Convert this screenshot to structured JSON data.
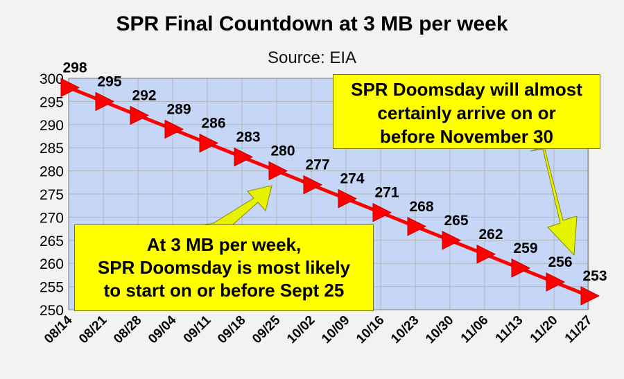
{
  "chart_data": {
    "type": "line",
    "title": "SPR Final Countdown at 3 MB per week",
    "subtitle": "Source: EIA",
    "categories": [
      "08/14",
      "08/21",
      "08/28",
      "09/04",
      "09/11",
      "09/18",
      "09/25",
      "10/02",
      "10/09",
      "10/16",
      "10/23",
      "10/30",
      "11/06",
      "11/13",
      "11/20",
      "11/27"
    ],
    "series": [
      {
        "values": [
          298,
          295,
          292,
          289,
          286,
          283,
          280,
          277,
          274,
          271,
          268,
          265,
          262,
          259,
          256,
          253
        ]
      }
    ],
    "data_labels": [
      "298",
      "295",
      "292",
      "289",
      "286",
      "283",
      "280",
      "277",
      "274",
      "271",
      "268",
      "265",
      "262",
      "259",
      "256",
      "253"
    ],
    "ylim": [
      250,
      300
    ],
    "yticks": [
      "250",
      "255",
      "260",
      "265",
      "270",
      "275",
      "280",
      "285",
      "290",
      "295",
      "300"
    ],
    "grid": true,
    "colors": {
      "line": "#ff0000",
      "marker": "#ff0000",
      "plot_background": "#c5d6f7",
      "callout": "#ffff00",
      "arrow": "#e6f200"
    },
    "annotations": [
      {
        "id": "right",
        "lines": [
          "SPR Doomsday will almost",
          "certainly arrive on or",
          "before November 30"
        ]
      },
      {
        "id": "left",
        "lines": [
          "At 3 MB per week,",
          "SPR Doomsday is most likely",
          "to start on or before Sept 25"
        ]
      }
    ]
  }
}
